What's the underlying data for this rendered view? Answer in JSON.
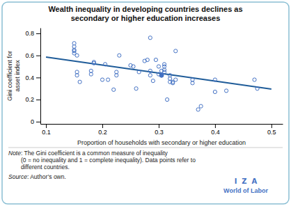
{
  "chart_data": {
    "type": "scatter",
    "title": "Wealth inequality in developing countries declines as\nsecondary or higher education increases",
    "x_label": "Proportion of households with secondary or higher education",
    "y_label": "Gini coefficient for\nasset index",
    "xlim": [
      0.09,
      0.52
    ],
    "ylim": [
      -0.02,
      0.85
    ],
    "xticks": [
      0.1,
      0.2,
      0.3,
      0.4,
      0.5
    ],
    "yticks": [
      0,
      0.2,
      0.4,
      0.6,
      0.8
    ],
    "grid": false,
    "series": [
      {
        "type": "scatter",
        "marker": "open circle",
        "color": "#4472C4",
        "x": [
          0.15,
          0.15,
          0.15,
          0.15,
          0.15,
          0.155,
          0.155,
          0.155,
          0.16,
          0.18,
          0.18,
          0.185,
          0.185,
          0.2,
          0.205,
          0.21,
          0.22,
          0.225,
          0.225,
          0.23,
          0.25,
          0.255,
          0.26,
          0.265,
          0.275,
          0.28,
          0.285,
          0.285,
          0.285,
          0.29,
          0.295,
          0.3,
          0.3,
          0.305,
          0.305,
          0.31,
          0.31,
          0.31,
          0.31,
          0.315,
          0.32,
          0.32,
          0.32,
          0.325,
          0.325,
          0.33,
          0.33,
          0.36,
          0.36,
          0.37,
          0.375,
          0.4,
          0.4,
          0.42,
          0.47,
          0.475
        ],
        "values": [
          0.62,
          0.65,
          0.68,
          0.71,
          0.64,
          0.6,
          0.42,
          0.45,
          0.36,
          0.43,
          0.46,
          0.53,
          0.54,
          0.38,
          0.52,
          0.38,
          0.29,
          0.42,
          0.45,
          0.6,
          0.51,
          0.5,
          0.3,
          0.45,
          0.55,
          0.56,
          0.42,
          0.46,
          0.76,
          0.37,
          0.56,
          0.43,
          0.5,
          0.42,
          0.46,
          0.45,
          0.47,
          0.5,
          0.52,
          0.2,
          0.36,
          0.39,
          0.42,
          0.35,
          0.36,
          0.38,
          0.64,
          0.35,
          0.38,
          0.11,
          0.14,
          0.27,
          0.38,
          0.28,
          0.38,
          0.3
        ]
      },
      {
        "type": "scatter",
        "marker": "filled circle",
        "color": "#4472C4",
        "x": [
          0.305
        ],
        "values": [
          0.42
        ]
      },
      {
        "type": "line",
        "line_style": "solid",
        "color": "#1F5C99",
        "x": [
          0.1,
          0.5
        ],
        "values": [
          0.585,
          0.295
        ]
      }
    ],
    "annotations": [
      [
        "Note",
        ": The Gini coefficient is a common measure of inequality\n(0 = no inequality and 1 = complete inequality). Data points refer to\ndifferent countries."
      ],
      [
        "Source",
        ": Author’s own."
      ],
      [
        "I  Z  A"
      ],
      [
        "World of Labor"
      ]
    ]
  }
}
